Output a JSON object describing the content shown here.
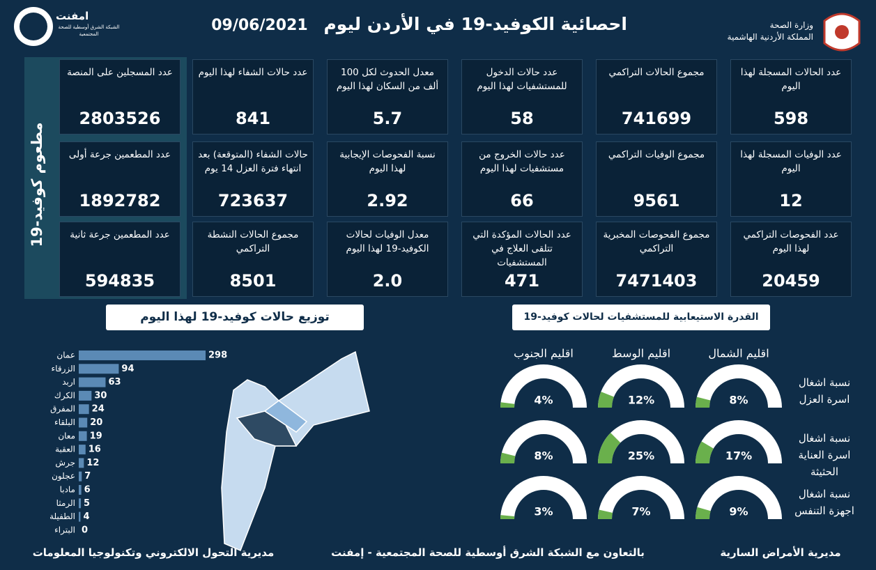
{
  "header": {
    "title": "احصائية الكوفيد-19 في الأردن ليوم",
    "date": "09/06/2021",
    "ministry": [
      "وزارة الصحة",
      "المملكة الأردنية الهاشمية"
    ],
    "logo_name": "امفنت",
    "logo_sub": "الشبكة الشرق أوسطية للصحة المجتمعية"
  },
  "cards": [
    {
      "label": "عدد الحالات المسجلة لهذا اليوم",
      "value": "598"
    },
    {
      "label": "مجموع الحالات التراكمي",
      "value": "741699"
    },
    {
      "label": "عدد حالات الدخول للمستشفيات لهذا اليوم",
      "value": "58"
    },
    {
      "label": "معدل الحدوث لكل 100 ألف من السكان لهذا اليوم",
      "value": "5.7"
    },
    {
      "label": "عدد حالات الشفاء لهذا اليوم",
      "value": "841"
    },
    {
      "label": "عدد الوفيات المسجلة لهذا اليوم",
      "value": "12"
    },
    {
      "label": "مجموع الوفيات التراكمي",
      "value": "9561"
    },
    {
      "label": "عدد حالات الخروج من مستشفيات لهذا اليوم",
      "value": "66"
    },
    {
      "label": "نسبة الفحوصات الإيجابية لهذا اليوم",
      "value": "2.92"
    },
    {
      "label": "حالات الشفاء (المتوقعة) بعد انتهاء فترة العزل 14 يوم",
      "value": "723637"
    },
    {
      "label": "عدد الفحوصات التراكمي لهذا اليوم",
      "value": "20459"
    },
    {
      "label": "مجموع الفحوصات المخبرية التراكمي",
      "value": "7471403"
    },
    {
      "label": "عدد الحالات المؤكدة التي تتلقى العلاج في المستشفيات",
      "value": "471"
    },
    {
      "label": "معدل الوفيات لحالات الكوفيد-19 لهذا اليوم",
      "value": "2.0"
    },
    {
      "label": "مجموع الحالات النشطة التراكمي",
      "value": "8501"
    }
  ],
  "vaccine": {
    "title": "مطعوم كوفيد-19",
    "cards": [
      {
        "label": "عدد المسجلين على المنصة",
        "value": "2803526"
      },
      {
        "label": "عدد المطعمين جرعة أولى",
        "value": "1892782"
      },
      {
        "label": "عدد المطعمين جرعة ثانية",
        "value": "594835"
      }
    ]
  },
  "chart_data": [
    {
      "type": "hbar",
      "title": "توزيع حالات كوفيد-19 لهذا اليوم",
      "color": "#5b8ab5",
      "categories": [
        "عمان",
        "الزرقاء",
        "اربد",
        "الكرك",
        "المفرق",
        "البلقاء",
        "معان",
        "العقبة",
        "جرش",
        "عجلون",
        "مادبا",
        "الرمثا",
        "الطفيلة",
        "البتراء"
      ],
      "values": [
        298,
        94,
        63,
        30,
        24,
        20,
        19,
        16,
        12,
        7,
        6,
        5,
        4,
        0
      ]
    },
    {
      "type": "gauge",
      "title": "القدرة الاستيعابية للمستشفيات لحالات كوفيد-19",
      "color": "#6ab04c",
      "ylim": [
        0,
        100
      ],
      "categories": [
        "اقليم الشمال",
        "اقليم الوسط",
        "اقليم الجنوب"
      ],
      "series": [
        {
          "name": "نسبة اشغال اسرة العزل",
          "values": [
            8,
            12,
            4
          ],
          "value_labels": [
            "8%",
            "12%",
            "4%"
          ]
        },
        {
          "name": "نسبة اشغال اسرة العناية الحثيثة",
          "values": [
            17,
            25,
            8
          ],
          "value_labels": [
            "17%",
            "25%",
            "8%"
          ]
        },
        {
          "name": "نسبة اشغال اجهزة التنفس",
          "values": [
            9,
            7,
            3
          ],
          "value_labels": [
            "9%",
            "7%",
            "3%"
          ]
        }
      ]
    }
  ],
  "footer": [
    "مديرية الأمراض السارية",
    "بالتعاون مع الشبكة الشرق أوسطية للصحة المجتمعية - إمفنت",
    "مديرية التحول الالكتروني وتكنولوجيا المعلومات"
  ]
}
